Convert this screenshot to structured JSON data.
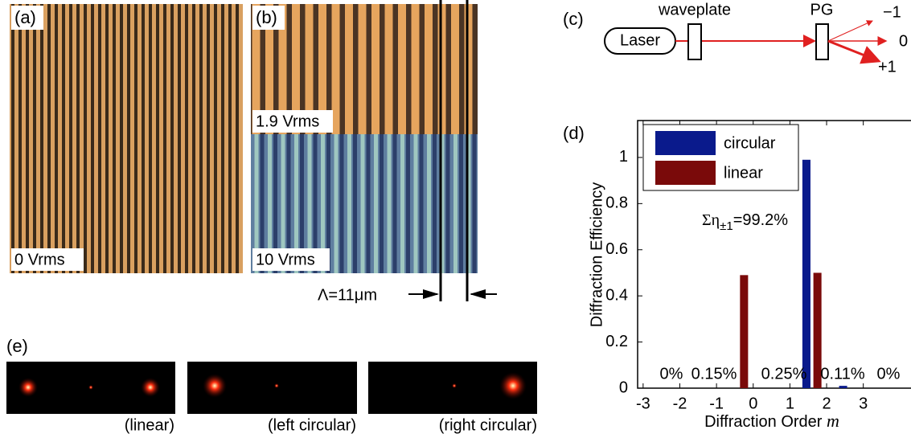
{
  "panel_a": {
    "label": "(a)",
    "voltage": "0 Vrms"
  },
  "panel_b": {
    "label": "(b)",
    "voltage_top": "1.9 Vrms",
    "voltage_bottom": "10 Vrms",
    "period": "Λ=11μm"
  },
  "panel_c": {
    "label": "(c)",
    "source": "Laser",
    "waveplate": "waveplate",
    "grating": "PG",
    "orders": [
      "−1",
      "0",
      "+1"
    ]
  },
  "panel_e": {
    "label": "(e)",
    "captions": [
      "(linear)",
      "(left circular)",
      "(right circular)"
    ]
  },
  "chart_data": {
    "type": "bar",
    "panel_label": "(d)",
    "x": [
      -3,
      -2,
      -1,
      0,
      1,
      2,
      3
    ],
    "series": [
      {
        "name": "circular",
        "color": "#0a1a8c",
        "values": [
          0,
          0,
          0,
          0,
          0.99,
          0.01,
          0
        ]
      },
      {
        "name": "linear",
        "color": "#7a0a0a",
        "values": [
          0,
          0,
          0.49,
          0,
          0.5,
          0,
          0
        ]
      }
    ],
    "xlim": [
      -3.15,
      4.3
    ],
    "xticks": [
      -3,
      -2,
      -1,
      0,
      1,
      2,
      3
    ],
    "ylim": [
      0,
      1.16
    ],
    "yticks": [
      0,
      0.2,
      0.4,
      0.6,
      0.8,
      1
    ],
    "ylabel": "Diffraction Efficiency",
    "xlabel": "Diffraction Order",
    "xlabel_symbol": "m",
    "annotations": [
      "0%",
      "0.15%",
      "0.25%",
      "0.11%",
      "0%"
    ],
    "sum_annotation": {
      "symbol": "Ση",
      "subscript": "±1",
      "value": "=99.2%"
    },
    "legend": "upper left"
  }
}
